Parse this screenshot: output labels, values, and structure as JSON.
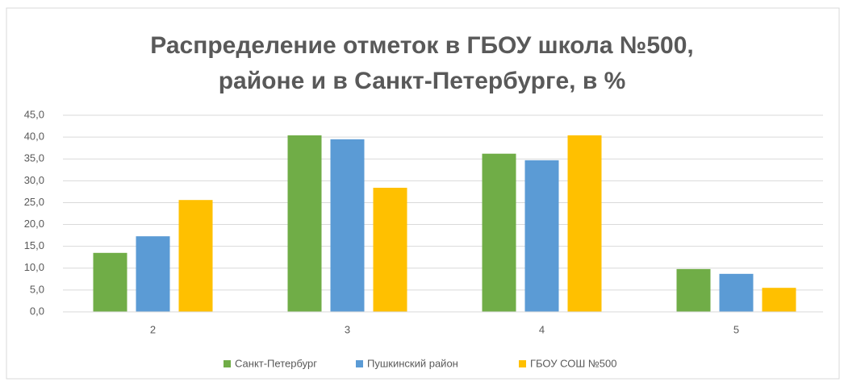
{
  "chart_data": {
    "type": "bar",
    "title": [
      "Распределение отметок в ГБОУ школа №500,",
      "районе и в Санкт-Петербурге, в %"
    ],
    "categories": [
      "2",
      "3",
      "4",
      "5"
    ],
    "series": [
      {
        "name": "Санкт-Петербург",
        "color": "#70ad47",
        "values": [
          13.5,
          40.4,
          36.2,
          9.8
        ]
      },
      {
        "name": "Пушкинский район",
        "color": "#5b9bd5",
        "values": [
          17.3,
          39.5,
          34.7,
          8.7
        ]
      },
      {
        "name": "ГБОУ СОШ №500",
        "color": "#ffc000",
        "values": [
          25.6,
          28.4,
          40.4,
          5.5
        ]
      }
    ],
    "ylim": [
      0,
      45
    ],
    "yticks": [
      {
        "value": 0,
        "label": "0,0"
      },
      {
        "value": 5,
        "label": "5,0"
      },
      {
        "value": 10,
        "label": "10,0"
      },
      {
        "value": 15,
        "label": "15,0"
      },
      {
        "value": 20,
        "label": "20,0"
      },
      {
        "value": 25,
        "label": "25,0"
      },
      {
        "value": 30,
        "label": "30,0"
      },
      {
        "value": 35,
        "label": "35,0"
      },
      {
        "value": 40,
        "label": "40,0"
      },
      {
        "value": 45,
        "label": "45,0"
      }
    ],
    "grid": true,
    "legend": "bottom"
  }
}
